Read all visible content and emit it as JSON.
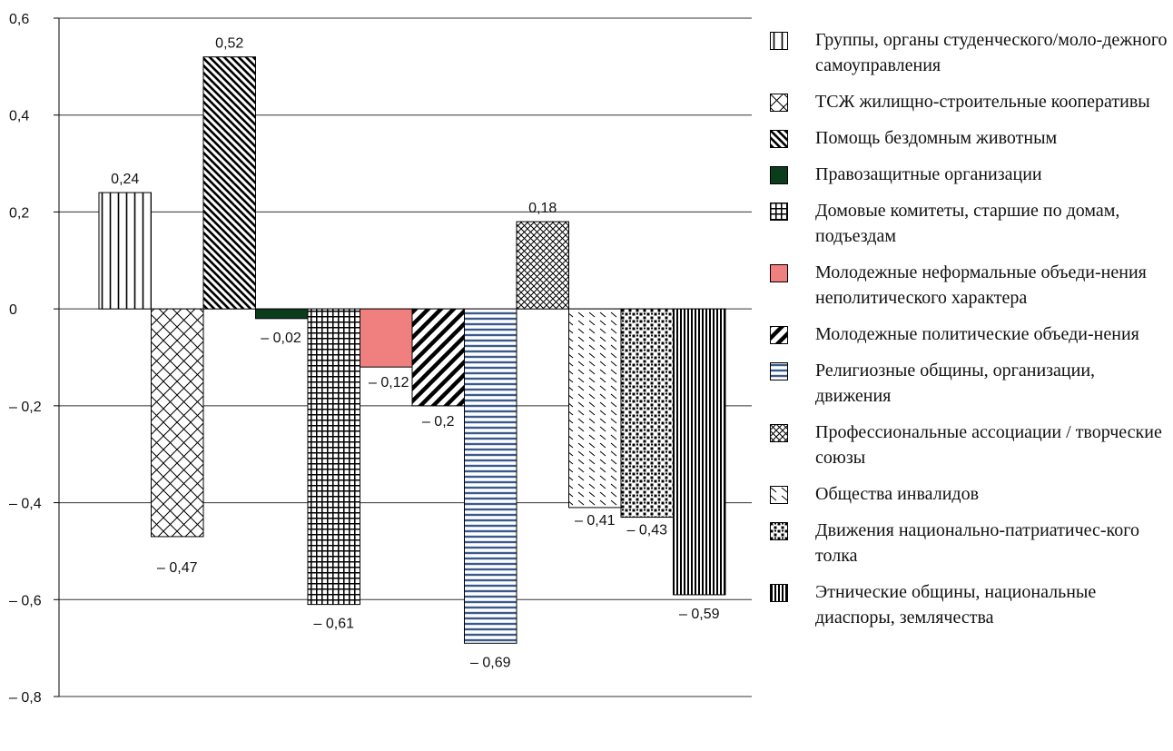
{
  "chart_data": {
    "type": "bar",
    "categories": [
      "Группы, органы студенческого/молодежного самоуправления",
      "ТСЖ жилищно-строительные кооперативы",
      "Помощь бездомным животным",
      "Правозащитные организации",
      "Домовые комитеты, старшие по домам, подъездам",
      "Молодежные неформальные объединения неполитического характера",
      "Молодежные политические объединения",
      "Религиозные общины, организации, движения",
      "Профессиональные ассоциации / творческие союзы",
      "Общества инвалидов",
      "Движения национально-патриатического толка",
      "Этнические общины, национальные диаспоры, землячества"
    ],
    "values": [
      0.24,
      -0.47,
      0.52,
      -0.02,
      -0.61,
      -0.12,
      -0.2,
      -0.69,
      0.18,
      -0.41,
      -0.43,
      -0.59
    ],
    "value_labels": [
      "0,24",
      "– 0,47",
      "0,52",
      "– 0,02",
      "– 0,61",
      "– 0,12",
      "– 0,2",
      "– 0,69",
      "0,18",
      "– 0,41",
      "– 0,43",
      "– 0,59"
    ],
    "patterns": [
      "vlines-wide",
      "crosshatch-diag",
      "diag-down",
      "solid-dark-green",
      "grid-dense",
      "solid-salmon",
      "diag-up-thick",
      "hlines-blue",
      "crosshatch-fine",
      "diag-sparse",
      "dots-dense",
      "vlines-dense"
    ],
    "colors": {
      "dark_green": "#0b3d1c",
      "salmon": "#f08080",
      "blue_stripe": "#3a5a8c",
      "grid": "#333333"
    },
    "yticks": [
      0.6,
      0.4,
      0.2,
      0,
      -0.2,
      -0.4,
      -0.6,
      -0.8
    ],
    "ytick_labels": [
      "0,6",
      "0,4",
      "0,2",
      "0",
      "– 0,2",
      "– 0,4",
      "– 0,6",
      "– 0,8"
    ],
    "ylim": [
      -0.8,
      0.6
    ],
    "title": "",
    "xlabel": "",
    "ylabel": "",
    "grid": true,
    "legend_position": "right",
    "legend": [
      "Группы, органы студенческого/моло-дежного самоуправления",
      "ТСЖ жилищно-строительные кооперативы",
      "Помощь бездомным животным",
      "Правозащитные организации",
      "Домовые комитеты, старшие по домам, подъездам",
      "Молодежные неформальные объеди-нения неполитического характера",
      "Молодежные политические объеди-нения",
      "Религиозные общины, организации, движения",
      "Профессиональные ассоциации / творческие союзы",
      "Общества инвалидов",
      "Движения национально-патриатичес-кого толка",
      "Этнические общины, национальные диаспоры, землячества"
    ]
  }
}
